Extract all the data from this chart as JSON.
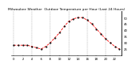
{
  "title": "Milwaukee Weather  Outdoor Temperature per Hour (Last 24 Hours)",
  "hours": [
    0,
    1,
    2,
    3,
    4,
    5,
    6,
    7,
    8,
    9,
    10,
    11,
    12,
    13,
    14,
    15,
    16,
    17,
    18,
    19,
    20,
    21,
    22,
    23
  ],
  "temps": [
    28,
    28,
    28,
    28,
    27,
    26,
    25,
    27,
    30,
    34,
    38,
    43,
    47,
    49,
    50,
    50,
    48,
    45,
    41,
    37,
    33,
    30,
    27,
    25
  ],
  "line_color": "#ff0000",
  "marker_color": "#000000",
  "bg_color": "#ffffff",
  "ylim": [
    20,
    55
  ],
  "yticks": [
    25,
    30,
    35,
    40,
    45,
    50
  ],
  "ytick_labels": [
    "25",
    "30",
    "35",
    "40",
    "45",
    "50"
  ],
  "grid_color": "#999999",
  "grid_positions": [
    0,
    4,
    8,
    12,
    16,
    20
  ],
  "xtick_positions": [
    0,
    2,
    4,
    6,
    8,
    10,
    12,
    14,
    16,
    18,
    20,
    22
  ],
  "title_fontsize": 3.2,
  "tick_fontsize": 2.8,
  "line_width": 0.6,
  "marker_size": 1.2
}
